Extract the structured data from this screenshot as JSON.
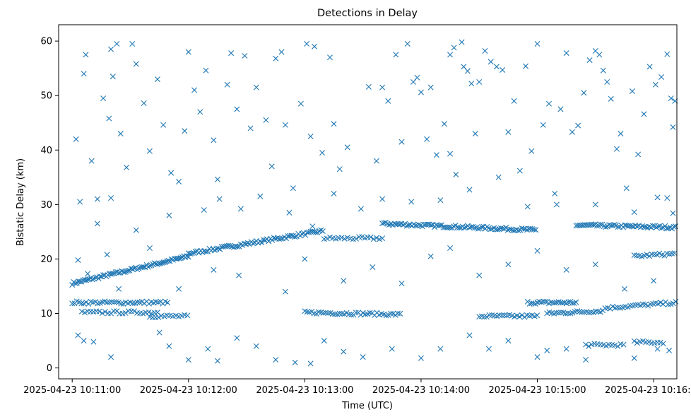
{
  "chart_data": {
    "type": "scatter",
    "title": "Detections in Delay",
    "xlabel": "Time (UTC)",
    "ylabel": "Bistatic Delay (km)",
    "marker": "x",
    "color": "#1f77b4",
    "grid": false,
    "legend": "none",
    "xlim": [
      "2025-04-23 10:10:53",
      "2025-04-23 10:16:12"
    ],
    "ylim": [
      -2,
      63
    ],
    "x_ticks": [
      "2025-04-23 10:11:00",
      "2025-04-23 10:12:00",
      "2025-04-23 10:13:00",
      "2025-04-23 10:14:00",
      "2025-04-23 10:15:00",
      "2025-04-23 10:16:00"
    ],
    "y_ticks": [
      0,
      10,
      20,
      30,
      40,
      50,
      60
    ],
    "series": [
      {
        "tracks": [
          {
            "x_start": "2025-04-23 10:11:00",
            "x_end": "2025-04-23 10:12:00",
            "y_start": 15.5,
            "y_end": 20.5,
            "spacing_s": 0.8
          },
          {
            "x_start": "2025-04-23 10:12:00",
            "x_end": "2025-04-23 10:13:10",
            "y_start": 21,
            "y_end": 25.2,
            "spacing_s": 0.9
          },
          {
            "x_start": "2025-04-23 10:13:10",
            "x_end": "2025-04-23 10:13:40",
            "y_start": 23.8,
            "y_end": 23.8,
            "spacing_s": 1.5
          },
          {
            "x_start": "2025-04-23 10:13:40",
            "x_end": "2025-04-23 10:15:00",
            "y_start": 26.5,
            "y_end": 25.3,
            "spacing_s": 0.9
          },
          {
            "x_start": "2025-04-23 10:15:20",
            "x_end": "2025-04-23 10:16:12",
            "y_start": 26.2,
            "y_end": 25.8,
            "spacing_s": 0.9
          },
          {
            "x_start": "2025-04-23 10:11:00",
            "x_end": "2025-04-23 10:11:50",
            "y_start": 12,
            "y_end": 12,
            "spacing_s": 1.2
          },
          {
            "x_start": "2025-04-23 10:11:05",
            "x_end": "2025-04-23 10:11:45",
            "y_start": 10.2,
            "y_end": 10.2,
            "spacing_s": 1.5
          },
          {
            "x_start": "2025-04-23 10:11:40",
            "x_end": "2025-04-23 10:12:00",
            "y_start": 9.5,
            "y_end": 9.5,
            "spacing_s": 1.5
          },
          {
            "x_start": "2025-04-23 10:13:00",
            "x_end": "2025-04-23 10:13:50",
            "y_start": 10.2,
            "y_end": 9.8,
            "spacing_s": 1.2
          },
          {
            "x_start": "2025-04-23 10:14:30",
            "x_end": "2025-04-23 10:15:00",
            "y_start": 9.5,
            "y_end": 9.5,
            "spacing_s": 1.3
          },
          {
            "x_start": "2025-04-23 10:14:55",
            "x_end": "2025-04-23 10:15:20",
            "y_start": 12,
            "y_end": 12,
            "spacing_s": 1.0
          },
          {
            "x_start": "2025-04-23 10:15:05",
            "x_end": "2025-04-23 10:15:35",
            "y_start": 10,
            "y_end": 10.5,
            "spacing_s": 1.2
          },
          {
            "x_start": "2025-04-23 10:15:35",
            "x_end": "2025-04-23 10:16:12",
            "y_start": 11,
            "y_end": 12,
            "spacing_s": 1.3
          },
          {
            "x_start": "2025-04-23 10:15:50",
            "x_end": "2025-04-23 10:16:12",
            "y_start": 20.5,
            "y_end": 21,
            "spacing_s": 1.3
          },
          {
            "x_start": "2025-04-23 10:15:25",
            "x_end": "2025-04-23 10:15:45",
            "y_start": 4.2,
            "y_end": 4.2,
            "spacing_s": 1.5
          },
          {
            "x_start": "2025-04-23 10:15:50",
            "x_end": "2025-04-23 10:16:05",
            "y_start": 4.7,
            "y_end": 4.7,
            "spacing_s": 1.5
          }
        ],
        "scattered_points": [
          [
            "2025-04-23 10:11:02",
            42
          ],
          [
            "2025-04-23 10:11:06",
            54
          ],
          [
            "2025-04-23 10:11:07",
            57.5
          ],
          [
            "2025-04-23 10:11:10",
            38
          ],
          [
            "2025-04-23 10:11:13",
            26.5
          ],
          [
            "2025-04-23 10:11:16",
            49.5
          ],
          [
            "2025-04-23 10:11:19",
            45.8
          ],
          [
            "2025-04-23 10:11:20",
            58.5
          ],
          [
            "2025-04-23 10:11:21",
            53.5
          ],
          [
            "2025-04-23 10:11:23",
            59.5
          ],
          [
            "2025-04-23 10:11:25",
            43
          ],
          [
            "2025-04-23 10:11:28",
            36.8
          ],
          [
            "2025-04-23 10:11:31",
            59.5
          ],
          [
            "2025-04-23 10:11:33",
            55.8
          ],
          [
            "2025-04-23 10:11:37",
            48.6
          ],
          [
            "2025-04-23 10:11:40",
            39.8
          ],
          [
            "2025-04-23 10:11:44",
            53
          ],
          [
            "2025-04-23 10:11:47",
            44.6
          ],
          [
            "2025-04-23 10:11:51",
            35.8
          ],
          [
            "2025-04-23 10:11:55",
            34.2
          ],
          [
            "2025-04-23 10:11:58",
            43.5
          ],
          [
            "2025-04-23 10:12:00",
            58
          ],
          [
            "2025-04-23 10:12:03",
            51
          ],
          [
            "2025-04-23 10:12:06",
            47
          ],
          [
            "2025-04-23 10:12:09",
            54.6
          ],
          [
            "2025-04-23 10:12:13",
            41.8
          ],
          [
            "2025-04-23 10:12:15",
            34.6
          ],
          [
            "2025-04-23 10:12:20",
            52
          ],
          [
            "2025-04-23 10:12:22",
            57.8
          ],
          [
            "2025-04-23 10:12:25",
            47.5
          ],
          [
            "2025-04-23 10:12:29",
            57.3
          ],
          [
            "2025-04-23 10:12:32",
            44
          ],
          [
            "2025-04-23 10:12:35",
            51.5
          ],
          [
            "2025-04-23 10:12:40",
            45.5
          ],
          [
            "2025-04-23 10:12:43",
            37
          ],
          [
            "2025-04-23 10:12:45",
            56.8
          ],
          [
            "2025-04-23 10:12:48",
            58
          ],
          [
            "2025-04-23 10:12:50",
            44.6
          ],
          [
            "2025-04-23 10:12:54",
            33
          ],
          [
            "2025-04-23 10:12:58",
            48.5
          ],
          [
            "2025-04-23 10:13:01",
            59.5
          ],
          [
            "2025-04-23 10:13:03",
            42.5
          ],
          [
            "2025-04-23 10:13:05",
            59
          ],
          [
            "2025-04-23 10:13:09",
            39.5
          ],
          [
            "2025-04-23 10:13:13",
            57
          ],
          [
            "2025-04-23 10:13:15",
            44.8
          ],
          [
            "2025-04-23 10:13:18",
            36.5
          ],
          [
            "2025-04-23 10:13:22",
            40.5
          ],
          [
            "2025-04-23 10:13:29",
            29.2
          ],
          [
            "2025-04-23 10:13:33",
            51.6
          ],
          [
            "2025-04-23 10:13:37",
            38
          ],
          [
            "2025-04-23 10:13:40",
            51.5
          ],
          [
            "2025-04-23 10:13:43",
            49
          ],
          [
            "2025-04-23 10:13:47",
            57.5
          ],
          [
            "2025-04-23 10:13:50",
            41.5
          ],
          [
            "2025-04-23 10:13:53",
            59.5
          ],
          [
            "2025-04-23 10:13:56",
            52.5
          ],
          [
            "2025-04-23 10:13:58",
            53.3
          ],
          [
            "2025-04-23 10:14:00",
            50.6
          ],
          [
            "2025-04-23 10:14:03",
            42
          ],
          [
            "2025-04-23 10:14:05",
            51.5
          ],
          [
            "2025-04-23 10:14:08",
            39.1
          ],
          [
            "2025-04-23 10:14:12",
            44.8
          ],
          [
            "2025-04-23 10:14:15",
            39.3
          ],
          [
            "2025-04-23 10:14:15",
            57.5
          ],
          [
            "2025-04-23 10:14:17",
            58.8
          ],
          [
            "2025-04-23 10:14:18",
            35.5
          ],
          [
            "2025-04-23 10:14:21",
            59.8
          ],
          [
            "2025-04-23 10:14:22",
            55.3
          ],
          [
            "2025-04-23 10:14:24",
            54.5
          ],
          [
            "2025-04-23 10:14:26",
            52.2
          ],
          [
            "2025-04-23 10:14:28",
            43
          ],
          [
            "2025-04-23 10:14:30",
            52.5
          ],
          [
            "2025-04-23 10:14:33",
            58.2
          ],
          [
            "2025-04-23 10:14:36",
            56.2
          ],
          [
            "2025-04-23 10:14:39",
            55.3
          ],
          [
            "2025-04-23 10:14:42",
            54.7
          ],
          [
            "2025-04-23 10:14:45",
            43.3
          ],
          [
            "2025-04-23 10:14:48",
            49
          ],
          [
            "2025-04-23 10:14:51",
            36.2
          ],
          [
            "2025-04-23 10:14:54",
            55.4
          ],
          [
            "2025-04-23 10:14:57",
            39.8
          ],
          [
            "2025-04-23 10:15:00",
            59.5
          ],
          [
            "2025-04-23 10:15:03",
            44.6
          ],
          [
            "2025-04-23 10:15:06",
            48.5
          ],
          [
            "2025-04-23 10:15:09",
            32
          ],
          [
            "2025-04-23 10:15:12",
            47.5
          ],
          [
            "2025-04-23 10:15:15",
            57.8
          ],
          [
            "2025-04-23 10:15:18",
            43.3
          ],
          [
            "2025-04-23 10:15:21",
            44.5
          ],
          [
            "2025-04-23 10:15:24",
            50.5
          ],
          [
            "2025-04-23 10:15:27",
            56.5
          ],
          [
            "2025-04-23 10:15:30",
            58.2
          ],
          [
            "2025-04-23 10:15:32",
            57.5
          ],
          [
            "2025-04-23 10:15:34",
            54.6
          ],
          [
            "2025-04-23 10:15:36",
            52.5
          ],
          [
            "2025-04-23 10:15:38",
            49.4
          ],
          [
            "2025-04-23 10:15:41",
            40.2
          ],
          [
            "2025-04-23 10:15:43",
            43
          ],
          [
            "2025-04-23 10:15:46",
            33
          ],
          [
            "2025-04-23 10:15:49",
            50.8
          ],
          [
            "2025-04-23 10:15:52",
            39.2
          ],
          [
            "2025-04-23 10:15:55",
            46.6
          ],
          [
            "2025-04-23 10:15:58",
            55.3
          ],
          [
            "2025-04-23 10:16:01",
            52
          ],
          [
            "2025-04-23 10:16:04",
            53.4
          ],
          [
            "2025-04-23 10:16:07",
            57.6
          ],
          [
            "2025-04-23 10:16:09",
            49.5
          ],
          [
            "2025-04-23 10:16:10",
            44.2
          ],
          [
            "2025-04-23 10:16:11",
            49
          ],
          [
            "2025-04-23 10:11:04",
            30.5
          ],
          [
            "2025-04-23 10:11:13",
            31
          ],
          [
            "2025-04-23 10:11:20",
            31.2
          ],
          [
            "2025-04-23 10:11:33",
            25.3
          ],
          [
            "2025-04-23 10:11:50",
            28
          ],
          [
            "2025-04-23 10:12:08",
            29
          ],
          [
            "2025-04-23 10:12:16",
            31
          ],
          [
            "2025-04-23 10:12:27",
            29.2
          ],
          [
            "2025-04-23 10:12:37",
            31.5
          ],
          [
            "2025-04-23 10:12:52",
            28.5
          ],
          [
            "2025-04-23 10:13:04",
            26
          ],
          [
            "2025-04-23 10:13:15",
            32
          ],
          [
            "2025-04-23 10:13:40",
            31
          ],
          [
            "2025-04-23 10:13:55",
            30.5
          ],
          [
            "2025-04-23 10:14:10",
            30.8
          ],
          [
            "2025-04-23 10:14:25",
            32.7
          ],
          [
            "2025-04-23 10:14:40",
            35
          ],
          [
            "2025-04-23 10:14:55",
            29.6
          ],
          [
            "2025-04-23 10:15:10",
            30
          ],
          [
            "2025-04-23 10:15:30",
            30
          ],
          [
            "2025-04-23 10:15:50",
            28.6
          ],
          [
            "2025-04-23 10:16:02",
            31.3
          ],
          [
            "2025-04-23 10:16:07",
            31.2
          ],
          [
            "2025-04-23 10:16:10",
            28.4
          ],
          [
            "2025-04-23 10:11:03",
            19.8
          ],
          [
            "2025-04-23 10:11:08",
            17.3
          ],
          [
            "2025-04-23 10:11:18",
            20.8
          ],
          [
            "2025-04-23 10:11:24",
            14.5
          ],
          [
            "2025-04-23 10:11:40",
            22
          ],
          [
            "2025-04-23 10:11:55",
            14.5
          ],
          [
            "2025-04-23 10:12:13",
            18
          ],
          [
            "2025-04-23 10:12:26",
            17
          ],
          [
            "2025-04-23 10:12:50",
            14
          ],
          [
            "2025-04-23 10:13:00",
            20
          ],
          [
            "2025-04-23 10:13:20",
            16
          ],
          [
            "2025-04-23 10:13:35",
            18.5
          ],
          [
            "2025-04-23 10:13:50",
            15.5
          ],
          [
            "2025-04-23 10:14:05",
            20.5
          ],
          [
            "2025-04-23 10:14:15",
            22
          ],
          [
            "2025-04-23 10:14:30",
            17
          ],
          [
            "2025-04-23 10:14:45",
            19
          ],
          [
            "2025-04-23 10:15:00",
            21.5
          ],
          [
            "2025-04-23 10:15:15",
            18
          ],
          [
            "2025-04-23 10:15:30",
            19
          ],
          [
            "2025-04-23 10:15:45",
            14.5
          ],
          [
            "2025-04-23 10:16:00",
            16
          ],
          [
            "2025-04-23 10:11:03",
            6
          ],
          [
            "2025-04-23 10:11:06",
            5
          ],
          [
            "2025-04-23 10:11:11",
            4.8
          ],
          [
            "2025-04-23 10:11:20",
            2
          ],
          [
            "2025-04-23 10:11:45",
            6.5
          ],
          [
            "2025-04-23 10:11:50",
            4
          ],
          [
            "2025-04-23 10:12:00",
            1.5
          ],
          [
            "2025-04-23 10:12:10",
            3.5
          ],
          [
            "2025-04-23 10:12:15",
            1.3
          ],
          [
            "2025-04-23 10:12:25",
            5.5
          ],
          [
            "2025-04-23 10:12:35",
            4
          ],
          [
            "2025-04-23 10:12:45",
            1.5
          ],
          [
            "2025-04-23 10:12:55",
            1
          ],
          [
            "2025-04-23 10:13:03",
            0.8
          ],
          [
            "2025-04-23 10:13:10",
            5
          ],
          [
            "2025-04-23 10:13:20",
            3
          ],
          [
            "2025-04-23 10:13:30",
            2
          ],
          [
            "2025-04-23 10:13:45",
            3.5
          ],
          [
            "2025-04-23 10:14:00",
            1.8
          ],
          [
            "2025-04-23 10:14:10",
            3.5
          ],
          [
            "2025-04-23 10:14:25",
            6
          ],
          [
            "2025-04-23 10:14:35",
            3.5
          ],
          [
            "2025-04-23 10:14:45",
            5
          ],
          [
            "2025-04-23 10:15:00",
            2
          ],
          [
            "2025-04-23 10:15:05",
            3.2
          ],
          [
            "2025-04-23 10:15:15",
            3.5
          ],
          [
            "2025-04-23 10:15:25",
            1.5
          ],
          [
            "2025-04-23 10:15:50",
            1.8
          ],
          [
            "2025-04-23 10:16:02",
            3.5
          ],
          [
            "2025-04-23 10:16:08",
            3.2
          ]
        ]
      }
    ]
  }
}
